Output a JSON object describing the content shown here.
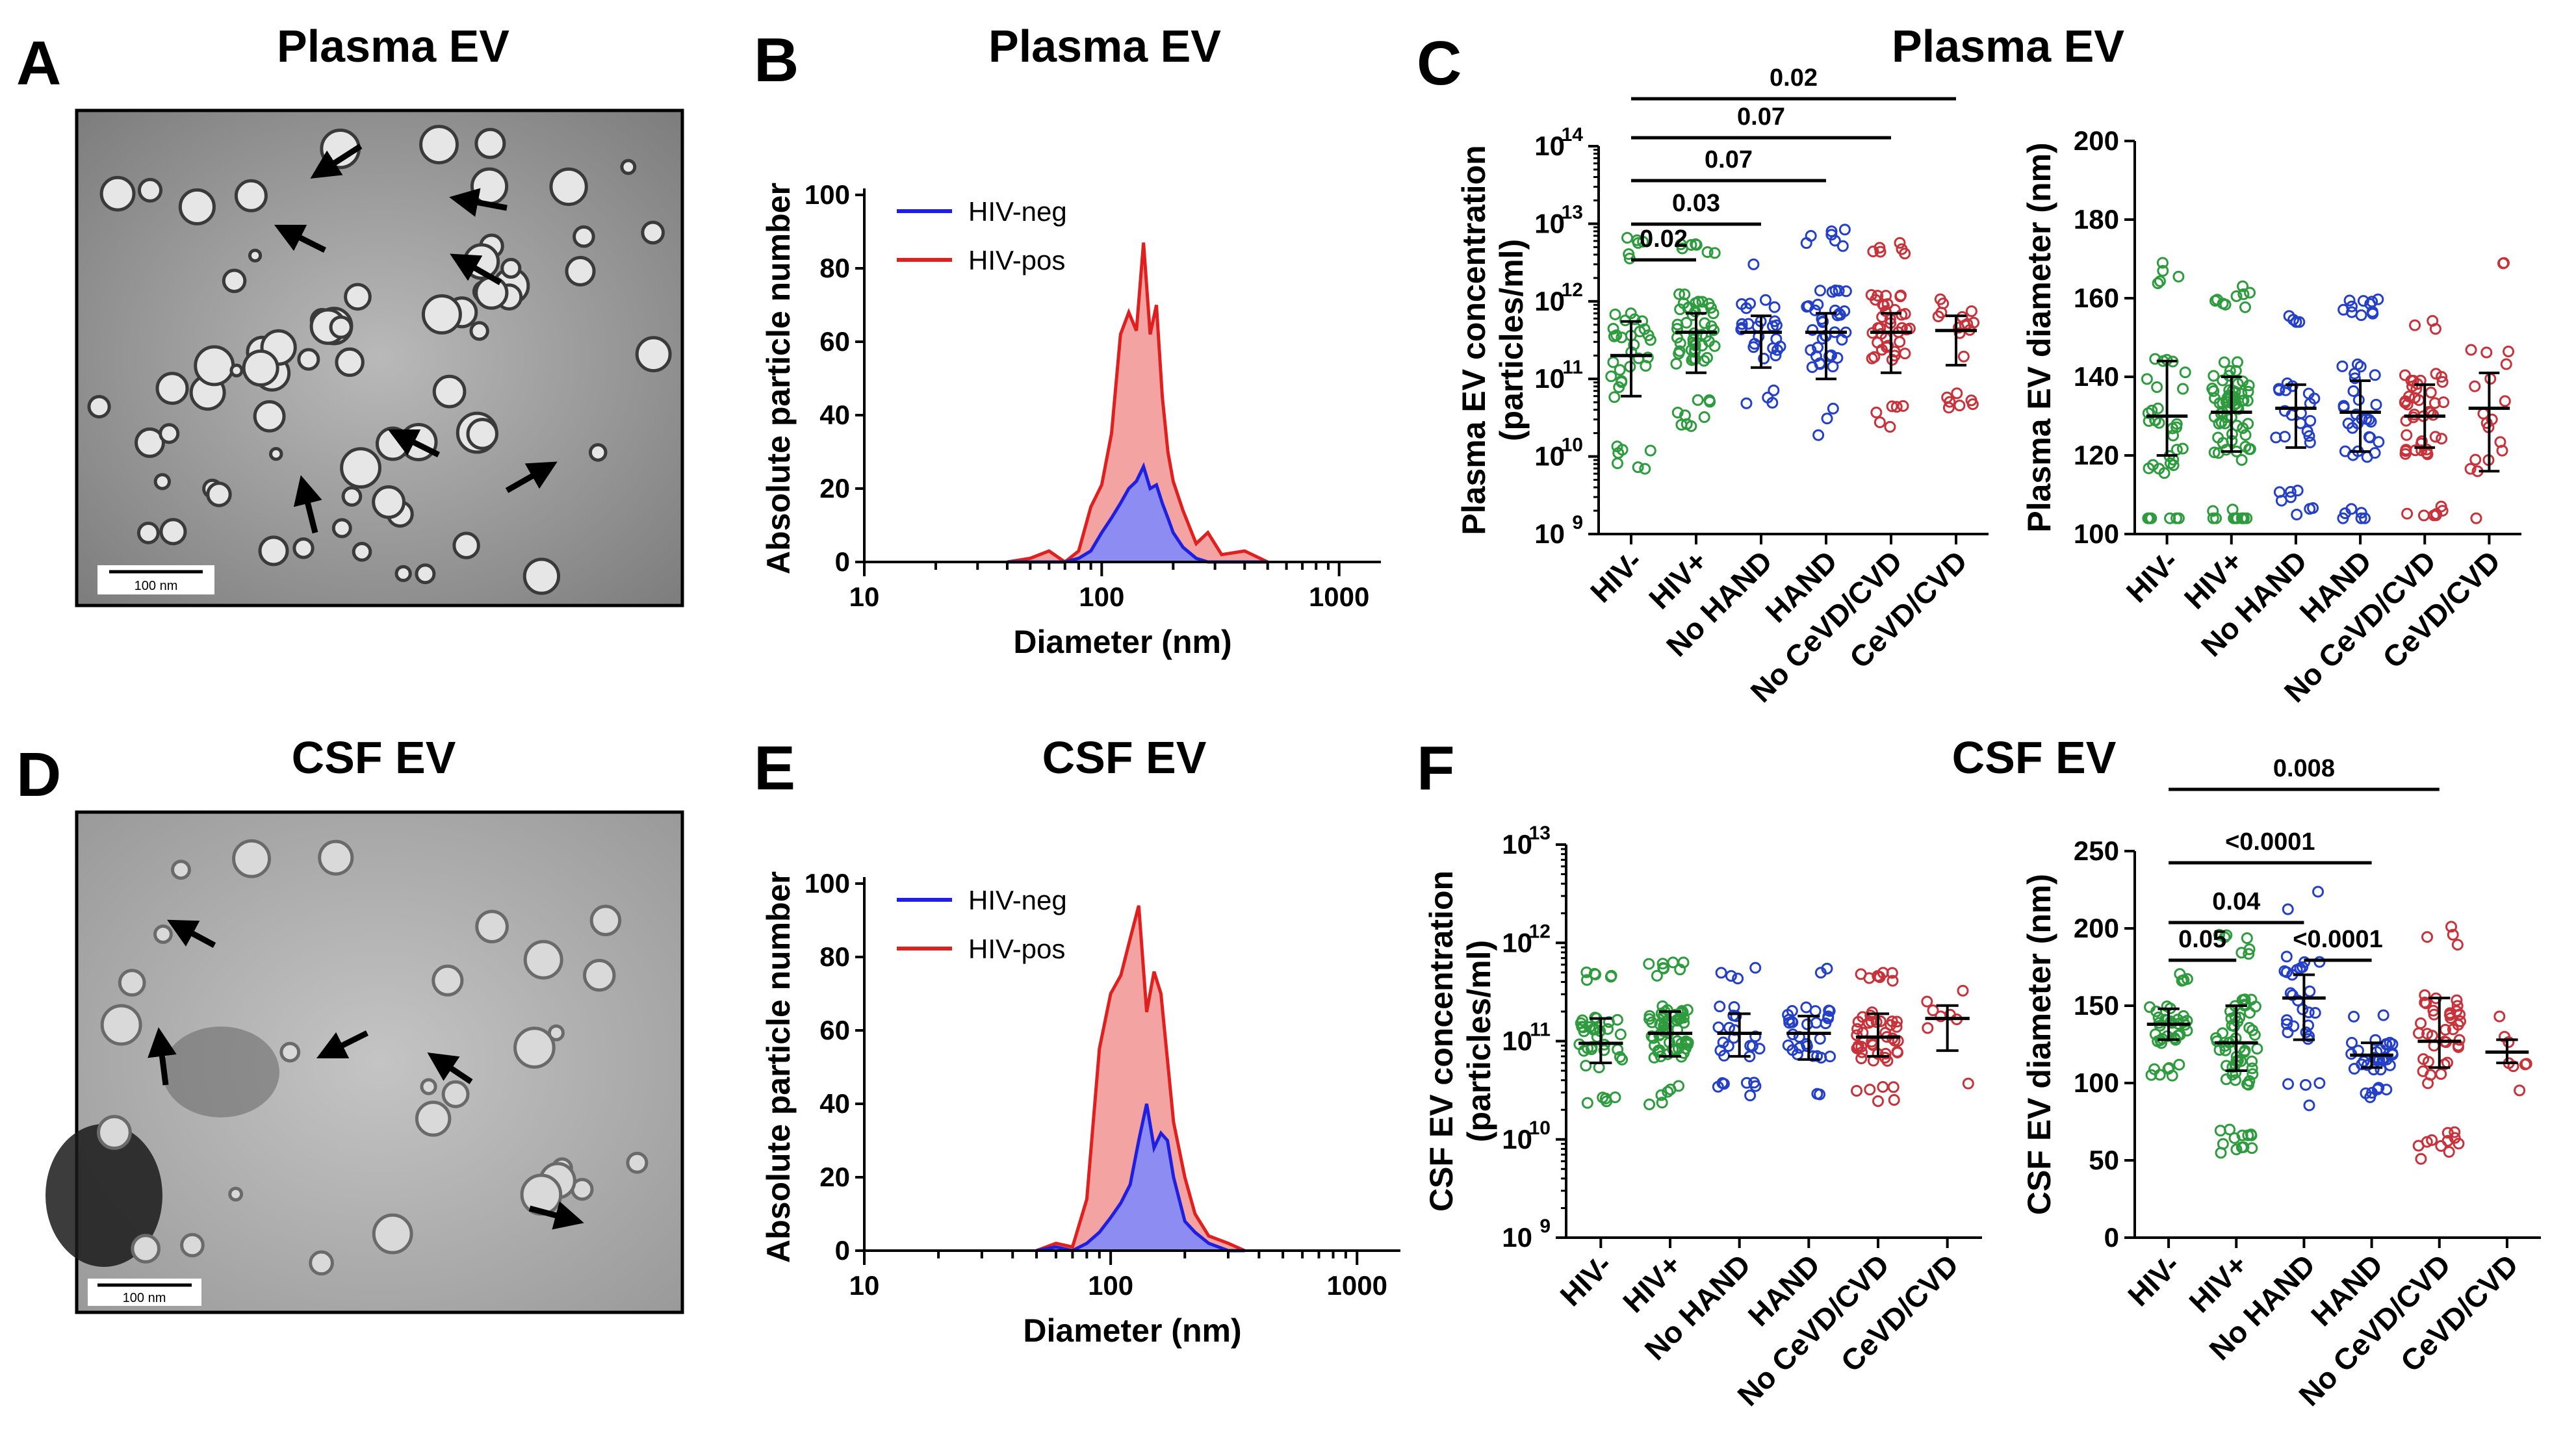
{
  "panels": {
    "A": {
      "label": "A",
      "title": "Plasma EV",
      "scale_text": "100 nm"
    },
    "B": {
      "label": "B",
      "title": "Plasma EV"
    },
    "C": {
      "label": "C",
      "title": "Plasma EV"
    },
    "D": {
      "label": "D",
      "title": "CSF EV",
      "scale_text": "100 nm"
    },
    "E": {
      "label": "E",
      "title": "CSF EV"
    },
    "F": {
      "label": "F",
      "title": "CSF EV"
    }
  },
  "colors": {
    "hiv_neg": "#1f1fe0",
    "hiv_pos": "#e01f1f",
    "hiv_neg_fill": "#8c8cf2",
    "hiv_pos_fill": "#f4a3a3",
    "green": "#2e9b3e",
    "blue": "#2440c8",
    "red": "#c8323a"
  },
  "groups": [
    "HIV-",
    "HIV+",
    "No HAND",
    "HAND",
    "No CeVD/CVD",
    "CeVD/CVD"
  ],
  "chart_data": [
    {
      "id": "B",
      "type": "area",
      "title": "Plasma EV",
      "xlabel": "Diameter (nm)",
      "ylabel": "Absolute particle number",
      "xscale": "log",
      "xlim": [
        10,
        1500
      ],
      "ylim": [
        0,
        100
      ],
      "xticks": [
        10,
        100,
        1000
      ],
      "yticks": [
        0,
        20,
        40,
        60,
        80,
        100
      ],
      "legend_position": "top-left",
      "x": [
        40,
        50,
        60,
        70,
        80,
        90,
        100,
        110,
        120,
        130,
        140,
        150,
        160,
        170,
        180,
        190,
        200,
        220,
        250,
        280,
        320,
        400,
        500
      ],
      "series": [
        {
          "name": "HIV-neg",
          "values": [
            0,
            0,
            0,
            0,
            1,
            3,
            8,
            12,
            16,
            20,
            22,
            26,
            20,
            21,
            16,
            12,
            8,
            4,
            1,
            0,
            0,
            0,
            0
          ]
        },
        {
          "name": "HIV-pos",
          "values": [
            0,
            1,
            3,
            0,
            3,
            15,
            21,
            35,
            62,
            68,
            63,
            87,
            62,
            70,
            45,
            30,
            22,
            14,
            5,
            8,
            2,
            3,
            0
          ]
        }
      ]
    },
    {
      "id": "E",
      "type": "area",
      "title": "CSF EV",
      "xlabel": "Diameter (nm)",
      "ylabel": "Absolute particle number",
      "xscale": "log",
      "xlim": [
        10,
        1500
      ],
      "ylim": [
        0,
        100
      ],
      "xticks": [
        10,
        100,
        1000
      ],
      "yticks": [
        0,
        20,
        40,
        60,
        80,
        100
      ],
      "legend_position": "top-left",
      "x": [
        50,
        60,
        70,
        80,
        90,
        100,
        110,
        120,
        130,
        140,
        150,
        160,
        170,
        180,
        200,
        220,
        250,
        300,
        350
      ],
      "series": [
        {
          "name": "HIV-neg",
          "values": [
            0,
            1,
            0,
            2,
            5,
            9,
            13,
            18,
            30,
            40,
            28,
            32,
            30,
            20,
            8,
            5,
            2,
            0,
            0
          ]
        },
        {
          "name": "HIV-pos",
          "values": [
            0,
            2,
            1,
            14,
            55,
            70,
            75,
            85,
            94,
            65,
            76,
            70,
            52,
            35,
            20,
            10,
            4,
            2,
            0
          ]
        }
      ]
    },
    {
      "id": "C-concentration",
      "type": "scatter",
      "title": "Plasma EV",
      "ylabel": "Plasma EV concentration (particles/ml)",
      "yscale": "log",
      "ylim": [
        1000000000.0,
        100000000000000.0
      ],
      "ytick_bases": [
        "10",
        "10",
        "10",
        "10",
        "10",
        "10"
      ],
      "ytick_exponents": [
        "9",
        "10",
        "11",
        "12",
        "13",
        "14"
      ],
      "categories": [
        "HIV-",
        "HIV+",
        "No HAND",
        "HAND",
        "No CeVD/CVD",
        "CeVD/CVD"
      ],
      "medians": [
        200000000000.0,
        400000000000.0,
        400000000000.0,
        400000000000.0,
        400000000000.0,
        420000000000.0
      ],
      "iqr_low": [
        60000000000.0,
        120000000000.0,
        140000000000.0,
        100000000000.0,
        120000000000.0,
        150000000000.0
      ],
      "iqr_high": [
        550000000000.0,
        700000000000.0,
        650000000000.0,
        700000000000.0,
        700000000000.0,
        650000000000.0
      ],
      "point_counts": [
        40,
        60,
        28,
        44,
        48,
        20
      ],
      "comparisons": [
        {
          "from": 0,
          "to": 1,
          "p": "0.02"
        },
        {
          "from": 0,
          "to": 2,
          "p": "0.03"
        },
        {
          "from": 0,
          "to": 3,
          "p": "0.07"
        },
        {
          "from": 0,
          "to": 4,
          "p": "0.07"
        },
        {
          "from": 0,
          "to": 5,
          "p": "0.02"
        }
      ]
    },
    {
      "id": "C-diameter",
      "type": "scatter",
      "ylabel": "Plasma EV diameter (nm)",
      "ylim": [
        100,
        200
      ],
      "yticks": [
        100,
        120,
        140,
        160,
        180,
        200
      ],
      "categories": [
        "HIV-",
        "HIV+",
        "No HAND",
        "HAND",
        "No CeVD/CVD",
        "CeVD/CVD"
      ],
      "medians": [
        130,
        131,
        132,
        131,
        130,
        132
      ],
      "iqr_low": [
        120,
        121,
        122,
        121,
        122,
        116
      ],
      "iqr_high": [
        144,
        140,
        138,
        139,
        138,
        141
      ],
      "point_counts": [
        40,
        80,
        30,
        44,
        50,
        20
      ],
      "comparisons": []
    },
    {
      "id": "F-concentration",
      "type": "scatter",
      "title": "CSF EV",
      "ylabel": "CSF EV concentration (particles/ml)",
      "yscale": "log",
      "ylim": [
        1000000000.0,
        10000000000000.0
      ],
      "ytick_bases": [
        "10",
        "10",
        "10",
        "10",
        "10"
      ],
      "ytick_exponents": [
        "9",
        "10",
        "11",
        "12",
        "13"
      ],
      "categories": [
        "HIV-",
        "HIV+",
        "No HAND",
        "HAND",
        "No CeVD/CVD",
        "CeVD/CVD"
      ],
      "medians": [
        95000000000.0,
        120000000000.0,
        120000000000.0,
        120000000000.0,
        110000000000.0,
        170000000000.0
      ],
      "iqr_low": [
        60000000000.0,
        70000000000.0,
        70000000000.0,
        65000000000.0,
        70000000000.0,
        80000000000.0
      ],
      "iqr_high": [
        170000000000.0,
        200000000000.0,
        190000000000.0,
        180000000000.0,
        190000000000.0,
        230000000000.0
      ],
      "point_counts": [
        40,
        70,
        28,
        32,
        50,
        8
      ],
      "comparisons": []
    },
    {
      "id": "F-diameter",
      "type": "scatter",
      "ylabel": "CSF EV diameter (nm)",
      "ylim": [
        0,
        250
      ],
      "yticks": [
        0,
        50,
        100,
        150,
        200,
        250
      ],
      "categories": [
        "HIV-",
        "HIV+",
        "No HAND",
        "HAND",
        "No CeVD/CVD",
        "CeVD/CVD"
      ],
      "medians": [
        138,
        126,
        155,
        118,
        127,
        120
      ],
      "iqr_low": [
        128,
        108,
        128,
        110,
        110,
        113
      ],
      "iqr_high": [
        148,
        150,
        170,
        126,
        155,
        128
      ],
      "point_counts": [
        40,
        70,
        30,
        34,
        50,
        8
      ],
      "comparisons": [
        {
          "from": 0,
          "to": 1,
          "p": "0.05"
        },
        {
          "from": 0,
          "to": 2,
          "p": "0.04"
        },
        {
          "from": 2,
          "to": 3,
          "p": "<0.0001"
        },
        {
          "from": 0,
          "to": 3,
          "p": "<0.0001"
        },
        {
          "from": 0,
          "to": 4,
          "p": "0.008"
        }
      ]
    }
  ]
}
